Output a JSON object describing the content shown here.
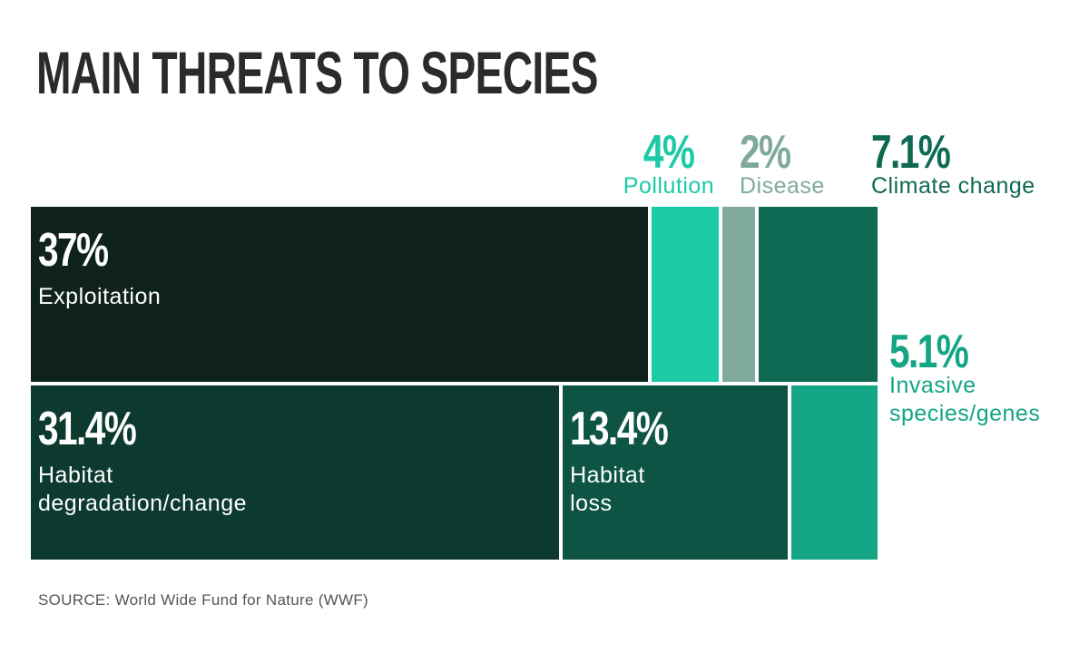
{
  "chart_data": {
    "type": "treemap",
    "title": "MAIN THREATS TO SPECIES",
    "categories": [
      "Exploitation",
      "Pollution",
      "Disease",
      "Climate change",
      "Habitat degradation/change",
      "Habitat loss",
      "Invasive species/genes"
    ],
    "values": [
      37,
      4,
      2,
      7.1,
      31.4,
      13.4,
      5.1
    ],
    "value_labels": [
      "37%",
      "4%",
      "2%",
      "7.1%",
      "31.4%",
      "13.4%",
      "5.1%"
    ],
    "colors": [
      "#10221e",
      "#1ccaa6",
      "#7fa99d",
      "#0f6a54",
      "#0c3a2f",
      "#0d5444",
      "#13a584"
    ],
    "source": "SOURCE: World Wide Fund for Nature (WWF)"
  }
}
